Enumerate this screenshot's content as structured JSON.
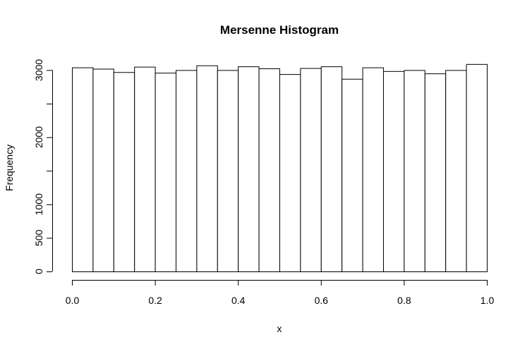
{
  "chart_data": {
    "type": "bar",
    "subtype": "histogram",
    "title": "Mersenne Histogram",
    "xlabel": "x",
    "ylabel": "Frequency",
    "bin_edges": [
      0.0,
      0.05,
      0.1,
      0.15,
      0.2,
      0.25,
      0.3,
      0.35,
      0.4,
      0.45,
      0.5,
      0.55,
      0.6,
      0.65,
      0.7,
      0.75,
      0.8,
      0.85,
      0.9,
      0.95,
      1.0
    ],
    "values": [
      3040,
      3020,
      2970,
      3050,
      2960,
      3000,
      3070,
      3000,
      3055,
      3025,
      2940,
      3030,
      3055,
      2870,
      3040,
      2985,
      3000,
      2950,
      3000,
      3090
    ],
    "xlim": [
      0.0,
      1.0
    ],
    "ylim": [
      0,
      3100
    ],
    "x_ticks": [
      0.0,
      0.2,
      0.4,
      0.6,
      0.8,
      1.0
    ],
    "x_tick_labels": [
      "0.0",
      "0.2",
      "0.4",
      "0.6",
      "0.8",
      "1.0"
    ],
    "y_ticks": [
      0,
      500,
      1000,
      2000,
      3000
    ],
    "y_tick_labels": [
      "0",
      "500",
      "1000",
      "2000",
      "3000"
    ],
    "y_minor_ticks": [
      1500,
      2500
    ],
    "grid": false,
    "legend": "none",
    "colors": {
      "bar_fill": "#ffffff",
      "bar_stroke": "#000000"
    }
  }
}
